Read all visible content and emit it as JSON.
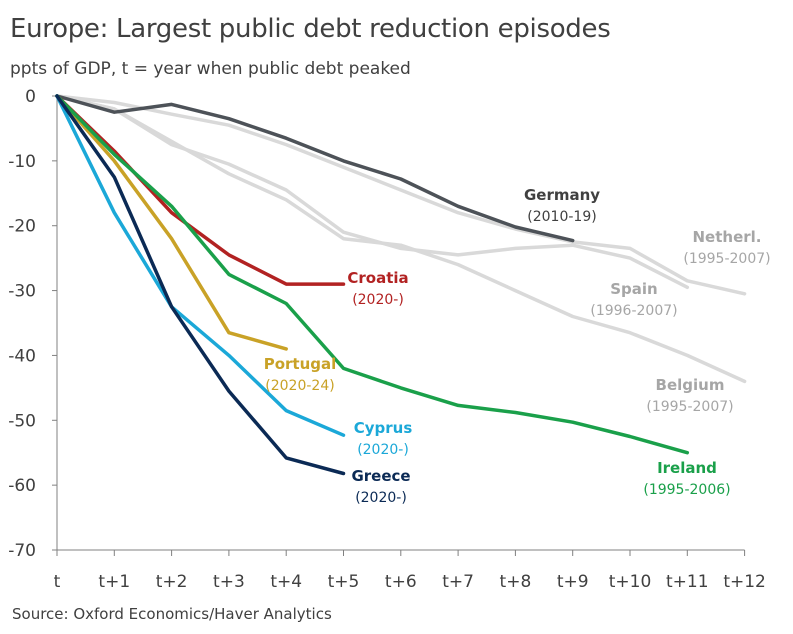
{
  "title": "Europe: Largest public debt reduction episodes",
  "subtitle": "ppts of GDP, t = year when public debt peaked",
  "source": "Source: Oxford Economics/Haver Analytics",
  "chart_data": {
    "type": "line",
    "title": "Europe: Largest public debt reduction episodes",
    "ylabel": "ppts of GDP, t = year when public debt peaked",
    "xlabel": "",
    "categories": [
      "t",
      "t+1",
      "t+2",
      "t+3",
      "t+4",
      "t+5",
      "t+6",
      "t+7",
      "t+8",
      "t+9",
      "t+10",
      "t+11",
      "t+12"
    ],
    "ylim": [
      -70,
      0
    ],
    "yticks": [
      0,
      -10,
      -20,
      -30,
      -40,
      -50,
      -60,
      -70
    ],
    "grid": false,
    "legend": "none (direct labels)",
    "series": [
      {
        "name": "Netherl.",
        "period": "(1995-2007)",
        "color": "#d9d9d9",
        "label_color": "#a6a6a6",
        "values": [
          0,
          -1,
          -2.8,
          -4.5,
          -7.5,
          -11,
          -14.5,
          -18,
          -20.5,
          -22.5,
          -23.5,
          -28.5,
          -30.5
        ]
      },
      {
        "name": "Spain",
        "period": "(1996-2007)",
        "color": "#d9d9d9",
        "label_color": "#a6a6a6",
        "values": [
          0,
          -2,
          -7.5,
          -10.5,
          -14.5,
          -21,
          -23.5,
          -24.5,
          -23.5,
          -23,
          -25,
          -29.5,
          null
        ]
      },
      {
        "name": "Belgium",
        "period": "(1995-2007)",
        "color": "#d9d9d9",
        "label_color": "#a6a6a6",
        "values": [
          0,
          -2,
          -7,
          -12,
          -16,
          -22,
          -23,
          -26,
          -30,
          -34,
          -36.5,
          -40,
          -44
        ]
      },
      {
        "name": "Germany",
        "period": "(2010-19)",
        "color": "#4d5258",
        "label_color": "#404040",
        "values": [
          0,
          -2.5,
          -1.3,
          -3.5,
          -6.5,
          -10,
          -12.8,
          -17,
          -20.2,
          -22.3,
          null,
          null,
          null
        ]
      },
      {
        "name": "Croatia",
        "period": "(2020-)",
        "color": "#b22222",
        "label_color": "#b22222",
        "values": [
          0,
          -8.5,
          -18,
          -24.5,
          -29,
          -29,
          null,
          null,
          null,
          null,
          null,
          null,
          null
        ]
      },
      {
        "name": "Portugal",
        "period": "(2020-24)",
        "color": "#c9a227",
        "label_color": "#c9a227",
        "values": [
          0,
          -10,
          -22,
          -36.5,
          -39,
          null,
          null,
          null,
          null,
          null,
          null,
          null,
          null
        ]
      },
      {
        "name": "Ireland",
        "period": "(1995-2006)",
        "color": "#1aa04a",
        "label_color": "#1aa04a",
        "values": [
          0,
          -9,
          -17,
          -27.5,
          -32,
          -42,
          -45,
          -47.7,
          -48.8,
          -50.3,
          -52.5,
          -55,
          null
        ]
      },
      {
        "name": "Cyprus",
        "period": "(2020-)",
        "color": "#1ba8d8",
        "label_color": "#1ba8d8",
        "values": [
          0,
          -18,
          -32.5,
          -40,
          -48.5,
          -52.3,
          null,
          null,
          null,
          null,
          null,
          null,
          null
        ]
      },
      {
        "name": "Greece",
        "period": "(2020-)",
        "color": "#0b2a55",
        "label_color": "#0b2a55",
        "values": [
          0,
          -12.5,
          -32.5,
          -45.5,
          -55.8,
          -58.2,
          null,
          null,
          null,
          null,
          null,
          null,
          null
        ]
      }
    ]
  }
}
